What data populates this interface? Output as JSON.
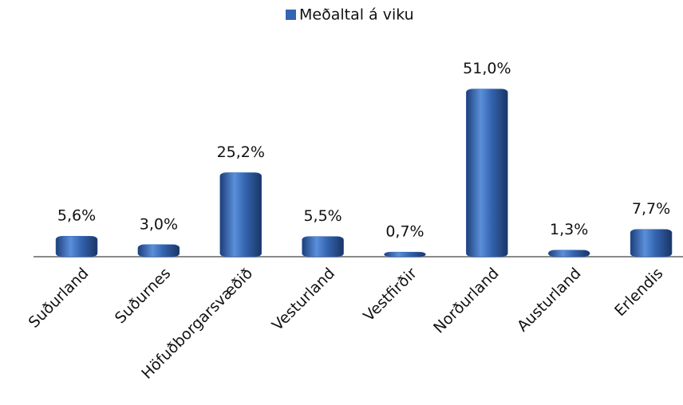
{
  "chart_data": {
    "type": "bar",
    "legend": "Meðaltal á viku",
    "legend_position": "top",
    "categories": [
      "Suðurland",
      "Suðurnes",
      "Höfuðborgarsvæðið",
      "Vesturland",
      "Vestfirðir",
      "Norðurland",
      "Austurland",
      "Erlendis"
    ],
    "values": [
      5.6,
      3.0,
      25.2,
      5.5,
      0.7,
      51.0,
      1.3,
      7.7
    ],
    "value_labels": [
      "5,6%",
      "3,0%",
      "25,2%",
      "5,5%",
      "0,7%",
      "51,0%",
      "1,3%",
      "7,7%"
    ],
    "color": "#3465b0",
    "ylim": [
      0,
      60
    ]
  }
}
